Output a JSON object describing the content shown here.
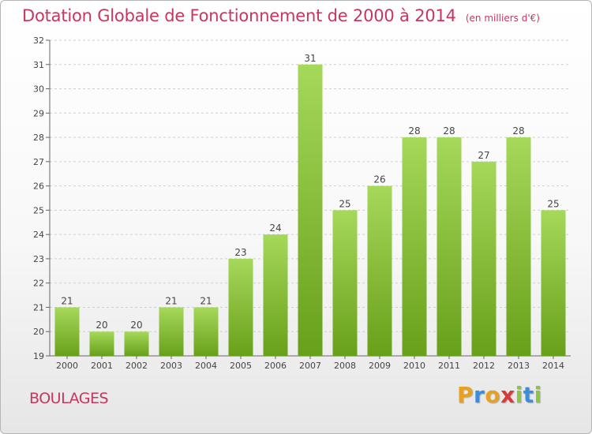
{
  "chart_data": {
    "type": "bar",
    "title": "Dotation Globale de Fonctionnement de 2000 à 2014",
    "subtitle": "(en milliers d'€)",
    "categories": [
      "2000",
      "2001",
      "2002",
      "2003",
      "2004",
      "2005",
      "2006",
      "2007",
      "2008",
      "2009",
      "2010",
      "2011",
      "2012",
      "2013",
      "2014"
    ],
    "values": [
      21,
      20,
      20,
      21,
      21,
      23,
      24,
      31,
      25,
      26,
      28,
      28,
      27,
      28,
      25
    ],
    "ylim": [
      19,
      32
    ],
    "yticks": [
      19,
      20,
      21,
      22,
      23,
      24,
      25,
      26,
      27,
      28,
      29,
      30,
      31,
      32
    ],
    "xlabel": "",
    "ylabel": "",
    "grid": true,
    "bar_color": "#7fbf2a",
    "bar_color_light": "#a6d85a",
    "grid_color": "#cfcfcf"
  },
  "place_name": "BOULAGES",
  "brand": {
    "letters": [
      "P",
      "r",
      "o",
      "x",
      "i",
      "t",
      "i"
    ],
    "colors": [
      "#e8a020",
      "#3a8fd8",
      "#e8a020",
      "#d83a3a",
      "#8cc63f",
      "#3a8fd8",
      "#8cc63f"
    ]
  }
}
